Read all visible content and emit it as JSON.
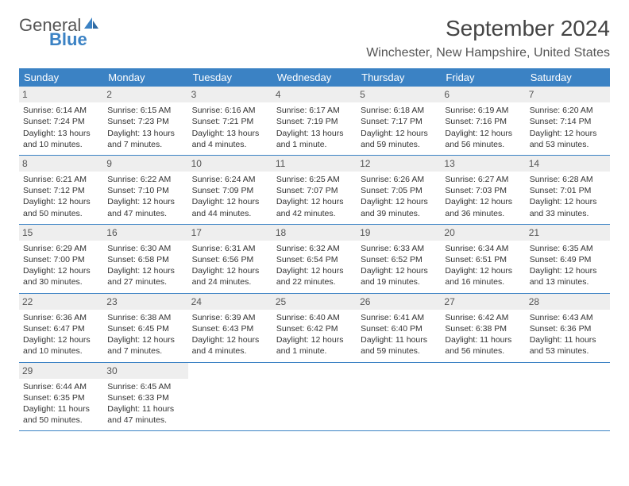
{
  "brand": {
    "name1": "General",
    "name2": "Blue"
  },
  "title": "September 2024",
  "location": "Winchester, New Hampshire, United States",
  "colors": {
    "header_bg": "#3b82c4",
    "day_label_bg": "#eeeeee",
    "rule": "#3b82c4"
  },
  "dow": [
    "Sunday",
    "Monday",
    "Tuesday",
    "Wednesday",
    "Thursday",
    "Friday",
    "Saturday"
  ],
  "weeks": [
    [
      {
        "n": "1",
        "sr": "6:14 AM",
        "ss": "7:24 PM",
        "dl": "13 hours and 10 minutes."
      },
      {
        "n": "2",
        "sr": "6:15 AM",
        "ss": "7:23 PM",
        "dl": "13 hours and 7 minutes."
      },
      {
        "n": "3",
        "sr": "6:16 AM",
        "ss": "7:21 PM",
        "dl": "13 hours and 4 minutes."
      },
      {
        "n": "4",
        "sr": "6:17 AM",
        "ss": "7:19 PM",
        "dl": "13 hours and 1 minute."
      },
      {
        "n": "5",
        "sr": "6:18 AM",
        "ss": "7:17 PM",
        "dl": "12 hours and 59 minutes."
      },
      {
        "n": "6",
        "sr": "6:19 AM",
        "ss": "7:16 PM",
        "dl": "12 hours and 56 minutes."
      },
      {
        "n": "7",
        "sr": "6:20 AM",
        "ss": "7:14 PM",
        "dl": "12 hours and 53 minutes."
      }
    ],
    [
      {
        "n": "8",
        "sr": "6:21 AM",
        "ss": "7:12 PM",
        "dl": "12 hours and 50 minutes."
      },
      {
        "n": "9",
        "sr": "6:22 AM",
        "ss": "7:10 PM",
        "dl": "12 hours and 47 minutes."
      },
      {
        "n": "10",
        "sr": "6:24 AM",
        "ss": "7:09 PM",
        "dl": "12 hours and 44 minutes."
      },
      {
        "n": "11",
        "sr": "6:25 AM",
        "ss": "7:07 PM",
        "dl": "12 hours and 42 minutes."
      },
      {
        "n": "12",
        "sr": "6:26 AM",
        "ss": "7:05 PM",
        "dl": "12 hours and 39 minutes."
      },
      {
        "n": "13",
        "sr": "6:27 AM",
        "ss": "7:03 PM",
        "dl": "12 hours and 36 minutes."
      },
      {
        "n": "14",
        "sr": "6:28 AM",
        "ss": "7:01 PM",
        "dl": "12 hours and 33 minutes."
      }
    ],
    [
      {
        "n": "15",
        "sr": "6:29 AM",
        "ss": "7:00 PM",
        "dl": "12 hours and 30 minutes."
      },
      {
        "n": "16",
        "sr": "6:30 AM",
        "ss": "6:58 PM",
        "dl": "12 hours and 27 minutes."
      },
      {
        "n": "17",
        "sr": "6:31 AM",
        "ss": "6:56 PM",
        "dl": "12 hours and 24 minutes."
      },
      {
        "n": "18",
        "sr": "6:32 AM",
        "ss": "6:54 PM",
        "dl": "12 hours and 22 minutes."
      },
      {
        "n": "19",
        "sr": "6:33 AM",
        "ss": "6:52 PM",
        "dl": "12 hours and 19 minutes."
      },
      {
        "n": "20",
        "sr": "6:34 AM",
        "ss": "6:51 PM",
        "dl": "12 hours and 16 minutes."
      },
      {
        "n": "21",
        "sr": "6:35 AM",
        "ss": "6:49 PM",
        "dl": "12 hours and 13 minutes."
      }
    ],
    [
      {
        "n": "22",
        "sr": "6:36 AM",
        "ss": "6:47 PM",
        "dl": "12 hours and 10 minutes."
      },
      {
        "n": "23",
        "sr": "6:38 AM",
        "ss": "6:45 PM",
        "dl": "12 hours and 7 minutes."
      },
      {
        "n": "24",
        "sr": "6:39 AM",
        "ss": "6:43 PM",
        "dl": "12 hours and 4 minutes."
      },
      {
        "n": "25",
        "sr": "6:40 AM",
        "ss": "6:42 PM",
        "dl": "12 hours and 1 minute."
      },
      {
        "n": "26",
        "sr": "6:41 AM",
        "ss": "6:40 PM",
        "dl": "11 hours and 59 minutes."
      },
      {
        "n": "27",
        "sr": "6:42 AM",
        "ss": "6:38 PM",
        "dl": "11 hours and 56 minutes."
      },
      {
        "n": "28",
        "sr": "6:43 AM",
        "ss": "6:36 PM",
        "dl": "11 hours and 53 minutes."
      }
    ],
    [
      {
        "n": "29",
        "sr": "6:44 AM",
        "ss": "6:35 PM",
        "dl": "11 hours and 50 minutes."
      },
      {
        "n": "30",
        "sr": "6:45 AM",
        "ss": "6:33 PM",
        "dl": "11 hours and 47 minutes."
      },
      {
        "n": "",
        "sr": "",
        "ss": "",
        "dl": ""
      },
      {
        "n": "",
        "sr": "",
        "ss": "",
        "dl": ""
      },
      {
        "n": "",
        "sr": "",
        "ss": "",
        "dl": ""
      },
      {
        "n": "",
        "sr": "",
        "ss": "",
        "dl": ""
      },
      {
        "n": "",
        "sr": "",
        "ss": "",
        "dl": ""
      }
    ]
  ],
  "labels": {
    "sunrise": "Sunrise: ",
    "sunset": "Sunset: ",
    "daylight": "Daylight: "
  }
}
